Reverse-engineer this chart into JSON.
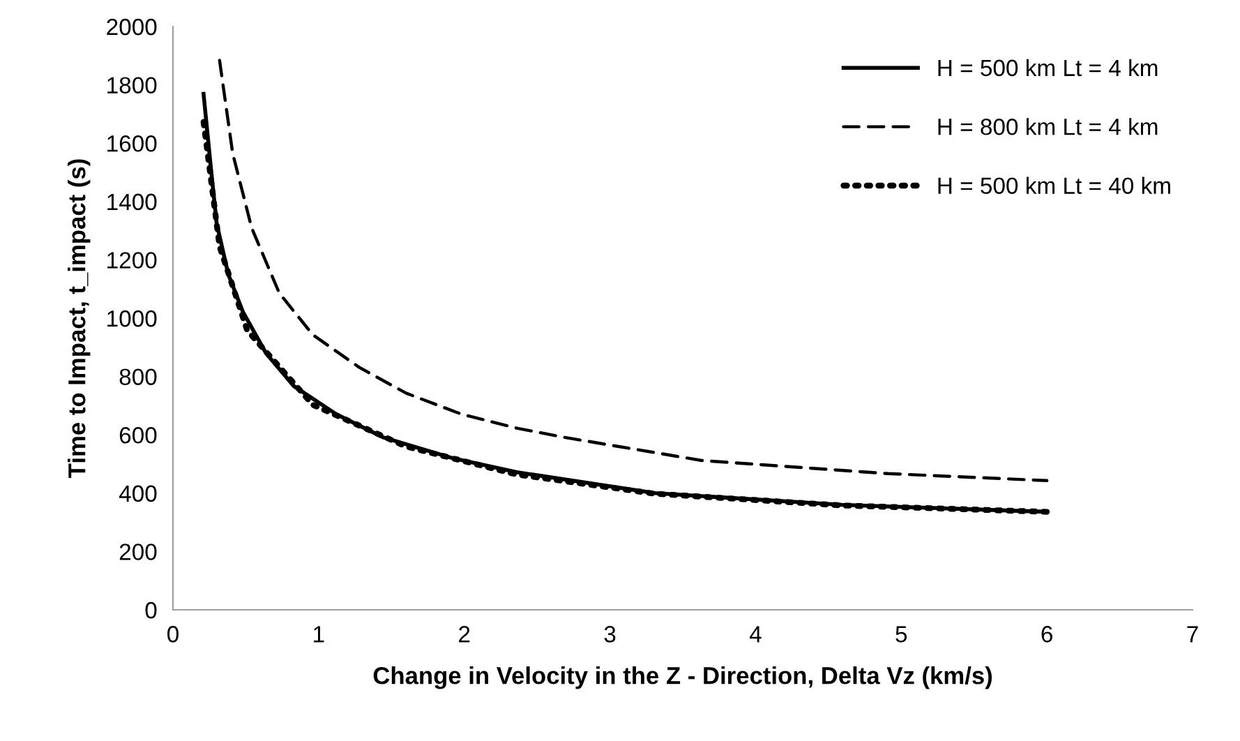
{
  "chart_data": {
    "type": "line",
    "xlabel": "Change in Velocity in the Z - Direction, Delta Vz (km/s)",
    "ylabel": "Time to Impact, t_impact (s)",
    "xlim": [
      0,
      7
    ],
    "xticks": [
      0,
      1,
      2,
      3,
      4,
      5,
      6,
      7
    ],
    "ylim": [
      0,
      2000
    ],
    "yticks": [
      0,
      200,
      400,
      600,
      800,
      1000,
      1200,
      1400,
      1600,
      1800,
      2000
    ],
    "grid": false,
    "legend": "top right",
    "series": [
      {
        "name": "H = 500 km Lt = 4 km",
        "color": "#000000",
        "line_style": "solid",
        "x": [
          0.21,
          0.26,
          0.3,
          0.38,
          0.48,
          0.64,
          0.83,
          1.12,
          1.44,
          1.92,
          2.36,
          3.31,
          4.59,
          6.0
        ],
        "values": [
          1769,
          1517,
          1325,
          1150,
          1022,
          879,
          767,
          671,
          592,
          520,
          472,
          400,
          360,
          336
        ]
      },
      {
        "name": "H = 800 km Lt = 4 km",
        "color": "#000000",
        "line_style": "dashed",
        "x": [
          0.32,
          0.41,
          0.54,
          0.73,
          0.96,
          1.28,
          1.6,
          1.98,
          2.36,
          2.68,
          3.63,
          4.91,
          6.0
        ],
        "values": [
          1884,
          1565,
          1310,
          1086,
          943,
          831,
          743,
          671,
          623,
          592,
          512,
          467,
          443
        ]
      },
      {
        "name": "H = 500 km Lt = 40 km",
        "color": "#000000",
        "line_style": "dotted",
        "x": [
          0.21,
          0.32,
          0.51,
          0.96,
          1.6,
          2.36,
          3.31,
          4.59,
          6.0
        ],
        "values": [
          1673,
          1246,
          958,
          703,
          560,
          464,
          398,
          358,
          336
        ]
      }
    ]
  }
}
